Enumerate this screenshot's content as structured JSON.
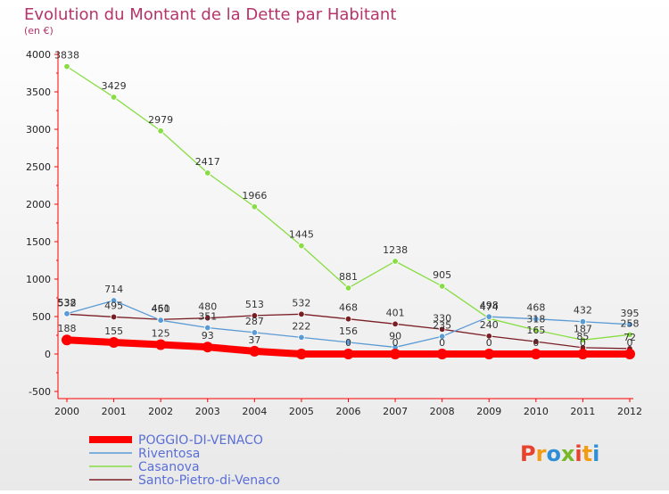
{
  "chart_data": {
    "type": "line",
    "title": "Evolution du Montant de la Dette par Habitant",
    "subtitle": "(en €)",
    "x": [
      "2000",
      "2001",
      "2002",
      "2003",
      "2004",
      "2005",
      "2006",
      "2007",
      "2008",
      "2009",
      "2010",
      "2011",
      "2012"
    ],
    "ylim": [
      -500,
      4000
    ],
    "yticks": [
      -500,
      0,
      500,
      1000,
      1500,
      2000,
      2500,
      3000,
      3500,
      4000
    ],
    "grid": false,
    "legend_position": "bottom-left",
    "series": [
      {
        "name": "POGGIO-DI-VENACO",
        "color": "#ff0000",
        "values": [
          188,
          155,
          125,
          93,
          37,
          0,
          0,
          0,
          0,
          0,
          0,
          0,
          0
        ],
        "labels": [
          "188",
          "155",
          "125",
          "93",
          "37",
          "",
          "0",
          "0",
          "0",
          "0",
          "0",
          "0",
          "0"
        ]
      },
      {
        "name": "Riventosa",
        "color": "#5b9bd5",
        "values": [
          538,
          714,
          450,
          351,
          287,
          222,
          156,
          90,
          235,
          498,
          468,
          432,
          395
        ],
        "labels": [
          "538",
          "714",
          "450",
          "351",
          "287",
          "222",
          "156",
          "90",
          "235",
          "498",
          "468",
          "432",
          "395"
        ]
      },
      {
        "name": "Casanova",
        "color": "#88dd44",
        "values": [
          3838,
          3429,
          2979,
          2417,
          1966,
          1445,
          881,
          1238,
          905,
          474,
          318,
          187,
          258
        ],
        "labels": [
          "3838",
          "3429",
          "2979",
          "2417",
          "1966",
          "1445",
          "881",
          "1238",
          "905",
          "474",
          "318",
          "187",
          "258"
        ]
      },
      {
        "name": "Santo-Pietro-di-Venaco",
        "color": "#7a1e26",
        "values": [
          532,
          495,
          461,
          480,
          513,
          532,
          468,
          401,
          330,
          240,
          165,
          85,
          72
        ],
        "labels": [
          "532",
          "495",
          "461",
          "480",
          "513",
          "532",
          "468",
          "401",
          "330",
          "240",
          "165",
          "85",
          "72"
        ]
      }
    ]
  },
  "branding": {
    "logo_text": "Proxiti"
  }
}
